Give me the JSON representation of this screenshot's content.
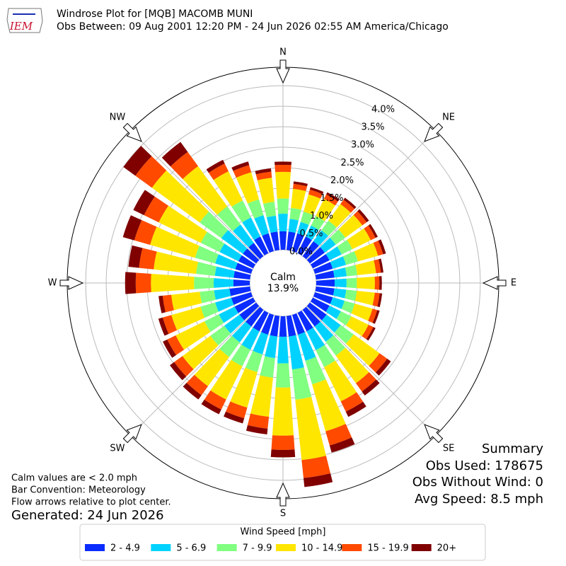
{
  "chart_data": {
    "type": "windrose",
    "title": "Windrose Plot for [MQB] MACOMB MUNI",
    "subtitle": "Obs Between: 09 Aug 2001 12:20 PM - 24 Jun 2026 02:55 AM America/Chicago",
    "logo": "IEM",
    "compass_labels": [
      "N",
      "NE",
      "E",
      "SE",
      "S",
      "SW",
      "W",
      "NW"
    ],
    "calm_label": "Calm",
    "calm_value": "13.9%",
    "rlim": [
      0,
      4.45
    ],
    "rticks": [
      {
        "value": 0,
        "label": "0.0%"
      },
      {
        "value": 0.5,
        "label": "0.5%"
      },
      {
        "value": 1,
        "label": "1.0%"
      },
      {
        "value": 1.5,
        "label": "1.5%"
      },
      {
        "value": 2,
        "label": "2.0%"
      },
      {
        "value": 2.5,
        "label": "2.5%"
      },
      {
        "value": 3,
        "label": "3.0%"
      },
      {
        "value": 3.5,
        "label": "3.5%"
      },
      {
        "value": 4,
        "label": "4.0%"
      }
    ],
    "legend_title": "Wind Speed [mph]",
    "series": [
      {
        "name": "2 - 4.9",
        "color": "#0a2cff",
        "values": [
          0.45,
          0.45,
          0.45,
          0.45,
          0.45,
          0.45,
          0.45,
          0.45,
          0.45,
          0.45,
          0.45,
          0.45,
          0.45,
          0.5,
          0.5,
          0.5,
          0.5,
          0.5,
          0.5,
          0.5,
          0.5,
          0.5,
          0.5,
          0.5,
          0.5,
          0.5,
          0.5,
          0.4,
          0.4,
          0.4,
          0.4,
          0.4,
          0.4,
          0.45,
          0.45,
          0.45
        ]
      },
      {
        "name": "5 - 6.9",
        "color": "#00d2ff",
        "values": [
          0.43,
          0.31,
          0.29,
          0.3,
          0.33,
          0.33,
          0.33,
          0.34,
          0.3,
          0.29,
          0.29,
          0.3,
          0.31,
          0.43,
          0.46,
          0.51,
          0.66,
          0.81,
          0.65,
          0.53,
          0.5,
          0.5,
          0.48,
          0.46,
          0.43,
          0.41,
          0.38,
          0.48,
          0.46,
          0.51,
          0.51,
          0.65,
          0.55,
          0.52,
          0.46,
          0.39
        ]
      },
      {
        "name": "7 - 9.9",
        "color": "#80ff80",
        "values": [
          0.37,
          0.27,
          0.26,
          0.26,
          0.29,
          0.29,
          0.29,
          0.3,
          0.26,
          0.25,
          0.26,
          0.26,
          0.28,
          0.39,
          0.42,
          0.46,
          0.6,
          0.74,
          0.59,
          0.48,
          0.45,
          0.45,
          0.44,
          0.42,
          0.39,
          0.37,
          0.35,
          0.48,
          0.46,
          0.51,
          0.51,
          0.65,
          0.55,
          0.46,
          0.4,
          0.34
        ]
      },
      {
        "name": "10 - 14.9",
        "color": "#ffe600",
        "values": [
          0.65,
          0.47,
          0.44,
          0.46,
          0.5,
          0.51,
          0.5,
          0.51,
          0.46,
          0.44,
          0.44,
          0.45,
          0.47,
          0.78,
          0.83,
          0.93,
          1.19,
          1.48,
          1.17,
          0.96,
          0.9,
          0.9,
          0.88,
          0.84,
          0.78,
          0.74,
          0.7,
          1.05,
          1.04,
          1.14,
          1.14,
          1.44,
          1.21,
          0.79,
          0.69,
          0.59
        ]
      },
      {
        "name": "15 - 19.9",
        "color": "#ff4a00",
        "values": [
          0.17,
          0.12,
          0.12,
          0.12,
          0.13,
          0.13,
          0.13,
          0.13,
          0.12,
          0.11,
          0.12,
          0.12,
          0.13,
          0.23,
          0.25,
          0.28,
          0.36,
          0.44,
          0.35,
          0.29,
          0.27,
          0.27,
          0.27,
          0.25,
          0.23,
          0.22,
          0.21,
          0.37,
          0.36,
          0.4,
          0.4,
          0.5,
          0.43,
          0.21,
          0.18,
          0.15
        ]
      },
      {
        "name": "20+",
        "color": "#800000",
        "values": [
          0.08,
          0.06,
          0.06,
          0.06,
          0.06,
          0.07,
          0.06,
          0.07,
          0.06,
          0.06,
          0.06,
          0.06,
          0.06,
          0.11,
          0.12,
          0.14,
          0.18,
          0.22,
          0.18,
          0.14,
          0.13,
          0.13,
          0.13,
          0.13,
          0.12,
          0.11,
          0.1,
          0.26,
          0.26,
          0.29,
          0.29,
          0.36,
          0.3,
          0.1,
          0.09,
          0.08
        ]
      }
    ],
    "summary": [
      "Summary",
      "Obs Used: 178675",
      "Obs Without Wind: 0",
      "Avg Speed: 8.5 mph"
    ],
    "notes": [
      "Calm values are < 2.0 mph",
      "Bar Convention: Meteorology",
      "Flow arrows relative to plot center."
    ],
    "generated": "Generated: 24 Jun 2026"
  }
}
